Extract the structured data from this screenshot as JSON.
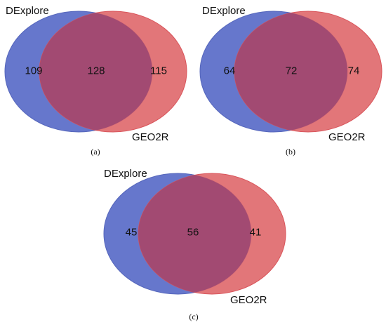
{
  "colors": {
    "set_a_fill": "#6677cc",
    "set_a_stroke": "#5566bb",
    "set_b_fill": "#e06a6e",
    "set_b_stroke": "#d9555b",
    "overlap_fill": "#a24a72"
  },
  "panels": [
    {
      "caption": "(a)",
      "set_a": "DExplore",
      "set_b": "GEO2R",
      "only_a": "109",
      "both": "128",
      "only_b": "115"
    },
    {
      "caption": "(b)",
      "set_a": "DExplore",
      "set_b": "GEO2R",
      "only_a": "64",
      "both": "72",
      "only_b": "74"
    },
    {
      "caption": "(c)",
      "set_a": "DExplore",
      "set_b": "GEO2R",
      "only_a": "45",
      "both": "56",
      "only_b": "41"
    }
  ]
}
